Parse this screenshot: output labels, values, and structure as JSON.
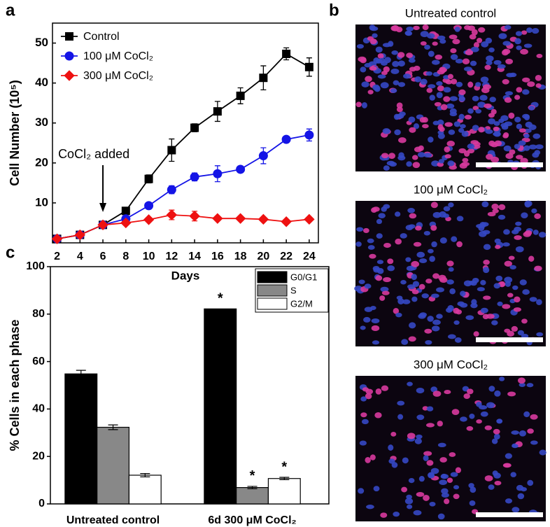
{
  "chart_data": [
    {
      "type": "line",
      "panel_label": "a",
      "x": [
        2,
        4,
        6,
        8,
        10,
        12,
        14,
        16,
        18,
        20,
        22,
        24
      ],
      "series": [
        {
          "name": "Control",
          "color": "#000000",
          "marker": "square",
          "values": [
            1,
            2,
            4.5,
            8,
            16,
            23.2,
            28.8,
            32.9,
            36.8,
            41.3,
            47.3,
            44
          ],
          "errors": [
            0.3,
            0.5,
            0.5,
            0.6,
            1,
            2.8,
            1,
            2.5,
            2,
            3,
            1.5,
            2.3
          ]
        },
        {
          "name": "100 μM CoCl₂",
          "color": "#1414e6",
          "marker": "circle",
          "values": [
            1,
            2,
            4.5,
            6,
            9.3,
            13.3,
            16.5,
            17.3,
            18.4,
            21.8,
            25.9,
            27
          ],
          "errors": [
            0.3,
            0.5,
            0.5,
            0.4,
            0.5,
            1,
            1,
            2,
            0.8,
            2,
            0.6,
            1.5
          ]
        },
        {
          "name": "300 μM CoCl₂",
          "color": "#ee1111",
          "marker": "diamond",
          "values": [
            1,
            2,
            4.5,
            5,
            5.8,
            7,
            6.7,
            6.1,
            6.1,
            5.9,
            5.3,
            5.9
          ],
          "errors": [
            0.3,
            0.5,
            0.5,
            0.4,
            0.5,
            1.2,
            1.2,
            0.5,
            0.4,
            0.4,
            0.4,
            0.4
          ]
        }
      ],
      "xlim": [
        1.6,
        24.8
      ],
      "ylim": [
        0,
        55
      ],
      "xticks": [
        2,
        4,
        6,
        8,
        10,
        12,
        14,
        16,
        18,
        20,
        22,
        24
      ],
      "yticks": [
        10,
        20,
        30,
        40,
        50
      ],
      "xlabel": "Days",
      "ylabel": "Cell Number (10⁵)",
      "legend": "upper left",
      "annotation": {
        "text": "CoCl₂ added",
        "x": 6
      }
    },
    {
      "type": "bar",
      "panel_label": "c",
      "categories": [
        "Untreated control",
        "6d 300 μM CoCl₂"
      ],
      "series": [
        {
          "name": "G0/G1",
          "color": "#000000",
          "values": [
            54.8,
            82.2
          ],
          "errors": [
            1.5,
            null
          ],
          "significance": [
            null,
            "*"
          ]
        },
        {
          "name": "S",
          "color": "#888888",
          "values": [
            32.3,
            6.9
          ],
          "errors": [
            1,
            0.5
          ],
          "significance": [
            null,
            "*"
          ]
        },
        {
          "name": "G2/M",
          "color": "#ffffff",
          "values": [
            12.1,
            10.7
          ],
          "errors": [
            0.7,
            0.5
          ],
          "significance": [
            null,
            "*"
          ]
        }
      ],
      "ylim": [
        0,
        100
      ],
      "yticks": [
        0,
        20,
        40,
        60,
        80,
        100
      ],
      "ylabel": "% Cells in each phase",
      "legend": "upper right"
    }
  ],
  "images": {
    "panel_label": "b",
    "titles": [
      "Untreated control",
      "100 μM CoCl₂",
      "300 μM CoCl₂"
    ]
  }
}
